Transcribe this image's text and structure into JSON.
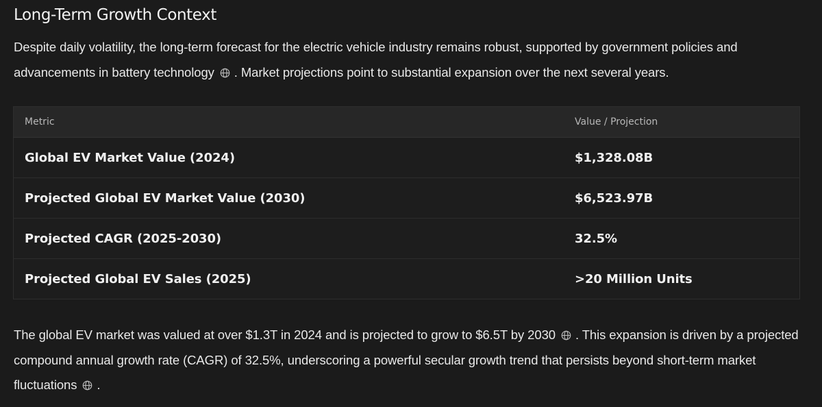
{
  "heading": "Long-Term Growth Context",
  "intro": {
    "text1": "Despite daily volatility, the long-term forecast for the electric vehicle industry remains robust, supported by government policies and advancements in battery technology",
    "text2": ". Market projections point to substantial expansion over the next several years."
  },
  "table": {
    "headers": [
      "Metric",
      "Value / Projection"
    ],
    "rows": [
      {
        "metric": "Global EV Market Value (2024)",
        "value": "$1,328.08B"
      },
      {
        "metric": "Projected Global EV Market Value (2030)",
        "value": "$6,523.97B"
      },
      {
        "metric": "Projected CAGR (2025-2030)",
        "value": "32.5%"
      },
      {
        "metric": "Projected Global EV Sales (2025)",
        "value": ">20 Million Units"
      }
    ]
  },
  "outro": {
    "text1": "The global EV market was valued at over $1.3T in 2024 and is projected to grow to $6.5T by 2030",
    "text2": ". This expansion is driven by a projected compound annual growth rate (CAGR) of 32.5%, underscoring a powerful secular growth trend that persists beyond short-term market fluctuations",
    "text3": "."
  },
  "icons": {
    "citation": "globe-icon"
  },
  "colors": {
    "background": "#1b1b1b",
    "header_row": "#272727",
    "text": "#ececec"
  }
}
